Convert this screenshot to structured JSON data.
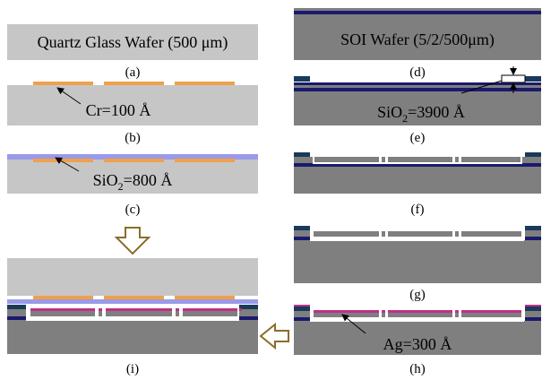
{
  "panels": {
    "a": {
      "caption": "(a)",
      "text": "Quartz Glass Wafer (500 μm)"
    },
    "b": {
      "caption": "(b)",
      "annotation": "Cr=100 Å"
    },
    "c": {
      "caption": "(c)",
      "annotation_main": "SiO",
      "annotation_sub": "2",
      "annotation_tail": "=800 Å"
    },
    "d": {
      "caption": "(d)",
      "text": "SOI Wafer (5/2/500μm)"
    },
    "e": {
      "caption": "(e)",
      "annotation_main": "SiO",
      "annotation_sub": "2",
      "annotation_tail": "=3900 Å"
    },
    "f": {
      "caption": "(f)"
    },
    "g": {
      "caption": "(g)"
    },
    "h": {
      "caption": "(h)",
      "annotation": "Ag=300 Å"
    },
    "i": {
      "caption": "(i)"
    }
  },
  "colors": {
    "quartz": "#c6c6c6",
    "silicon": "#7f7f7f",
    "oxide": "#1a1a6e",
    "chromium": "#f0a04a",
    "sio2_film": "#9a9ae8",
    "silver": "#c0308a",
    "gap": "#ffffff",
    "arrow": "#8a6d2a"
  }
}
